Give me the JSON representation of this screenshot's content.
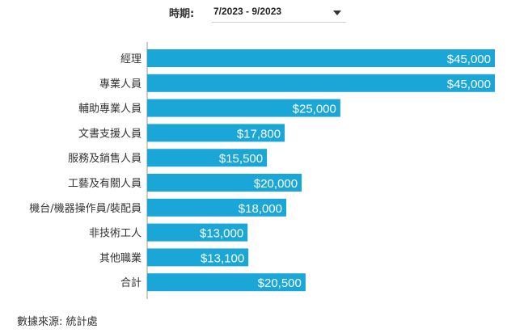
{
  "filter": {
    "label": "時期:",
    "selected": "7/2023 - 9/2023"
  },
  "source": "數據來源: 統計處",
  "colors": {
    "bar": "#1aa7d8",
    "axis": "#999999",
    "bar_label": "#ffffff",
    "category_label": "#333333"
  },
  "chart_data": {
    "type": "bar",
    "orientation": "horizontal",
    "categories": [
      "經理",
      "專業人員",
      "輔助專業人員",
      "文書支援人員",
      "服務及銷售人員",
      "工藝及有關人員",
      "機台/機器操作員/裝配員",
      "非技術工人",
      "其他職業",
      "合計"
    ],
    "values": [
      45000,
      45000,
      25000,
      17800,
      15500,
      20000,
      18000,
      13000,
      13100,
      20500
    ],
    "labels": [
      "$45,000",
      "$45,000",
      "$25,000",
      "$17,800",
      "$15,500",
      "$20,000",
      "$18,000",
      "$13,000",
      "$13,100",
      "$20,500"
    ],
    "xlim": [
      0,
      45000
    ],
    "grid": false,
    "legend": false
  }
}
